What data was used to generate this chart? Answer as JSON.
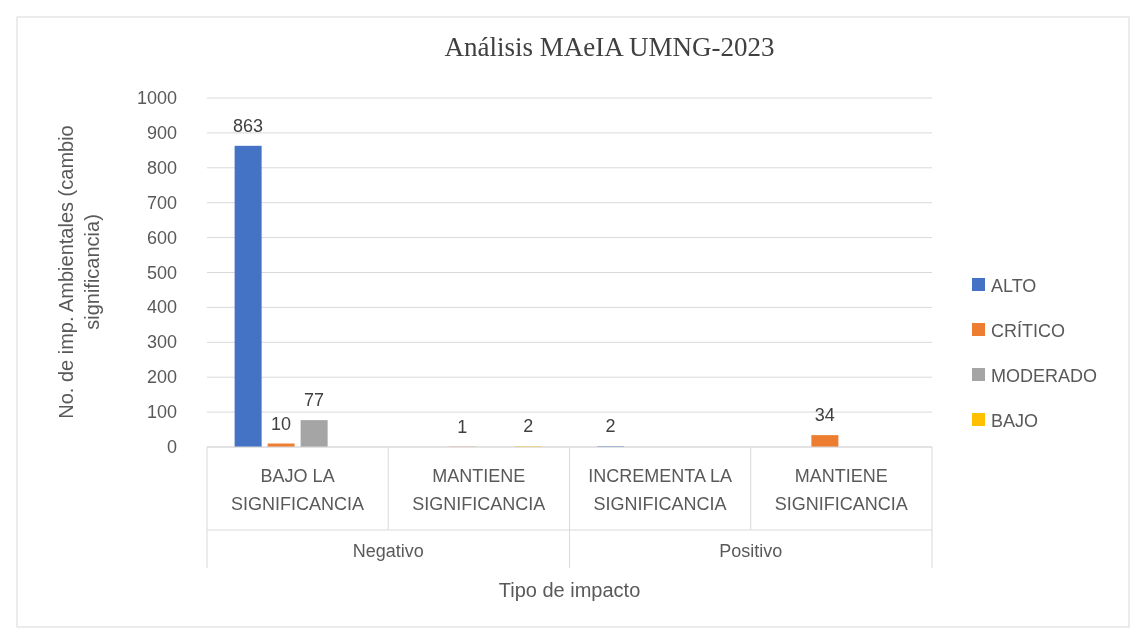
{
  "chart_data": {
    "type": "bar",
    "title": "Análisis MAeIA UMNG-2023",
    "xlabel": "Tipo de impacto",
    "ylabel": "No. de imp. Ambientales (cambio significancia)",
    "categories": [
      "BAJO LA SIGNIFICANCIA",
      "MANTIENE SIGNIFICANCIA",
      "INCREMENTA LA SIGNIFICANCIA",
      "MANTIENE SIGNIFICANCIA"
    ],
    "series": [
      {
        "name": "ALTO",
        "color": "#4472c4",
        "values": [
          863,
          null,
          2,
          null
        ]
      },
      {
        "name": "CRÍTICO",
        "color": "#ed7d31",
        "values": [
          10,
          1,
          null,
          34
        ]
      },
      {
        "name": "MODERADO",
        "color": "#a5a5a5",
        "values": [
          77,
          null,
          null,
          null
        ]
      },
      {
        "name": "BAJO",
        "color": "#ffc000",
        "values": [
          null,
          2,
          null,
          null
        ]
      }
    ],
    "annotations": [
      "Negativo",
      "Positivo"
    ],
    "ylim": [
      0,
      1000
    ],
    "yticks": [
      0,
      100,
      200,
      300,
      400,
      500,
      600,
      700,
      800,
      900,
      1000
    ],
    "grid": "y",
    "legend": "right",
    "data_labels": true
  }
}
